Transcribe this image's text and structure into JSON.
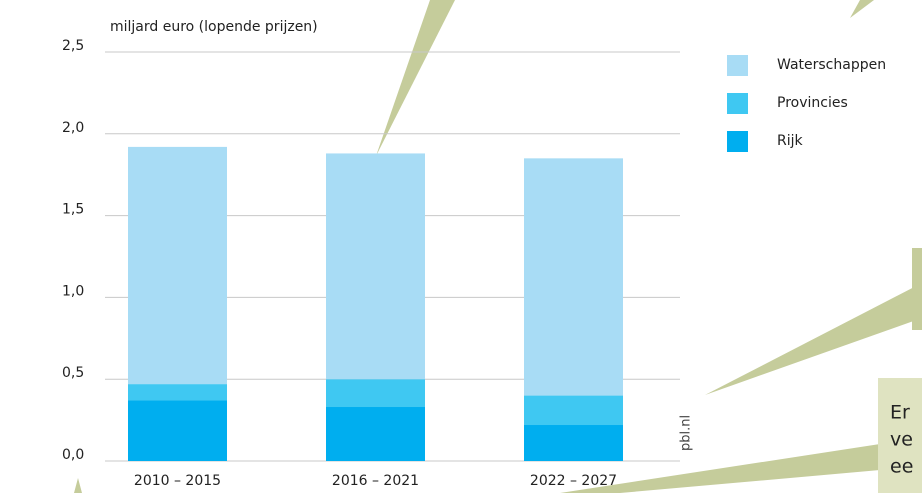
{
  "chart_data": {
    "type": "stacked_bar",
    "y_axis_label": "miljard euro (lopende prijzen)",
    "categories": [
      "2010 – 2015",
      "2016 – 2021",
      "2022 – 2027"
    ],
    "series": [
      {
        "name": "Rijk",
        "color": "#00aeef",
        "values": [
          0.37,
          0.33,
          0.22
        ]
      },
      {
        "name": "Provincies",
        "color": "#3fc8f2",
        "values": [
          0.1,
          0.17,
          0.18
        ]
      },
      {
        "name": "Waterschappen",
        "color": "#a8dcf5",
        "values": [
          1.45,
          1.38,
          1.45
        ]
      }
    ],
    "ylim": [
      0,
      2.5
    ],
    "yticks": [
      {
        "value": 0,
        "label": "0,0"
      },
      {
        "value": 0.5,
        "label": "0,5"
      },
      {
        "value": 1.0,
        "label": "1,0"
      },
      {
        "value": 1.5,
        "label": "1,5"
      },
      {
        "value": 2.0,
        "label": "2,0"
      },
      {
        "value": 2.5,
        "label": "2,5"
      }
    ],
    "grid": true,
    "source": "pbl.nl",
    "annotation_lines": [
      "Er",
      "ve",
      "ee"
    ]
  }
}
